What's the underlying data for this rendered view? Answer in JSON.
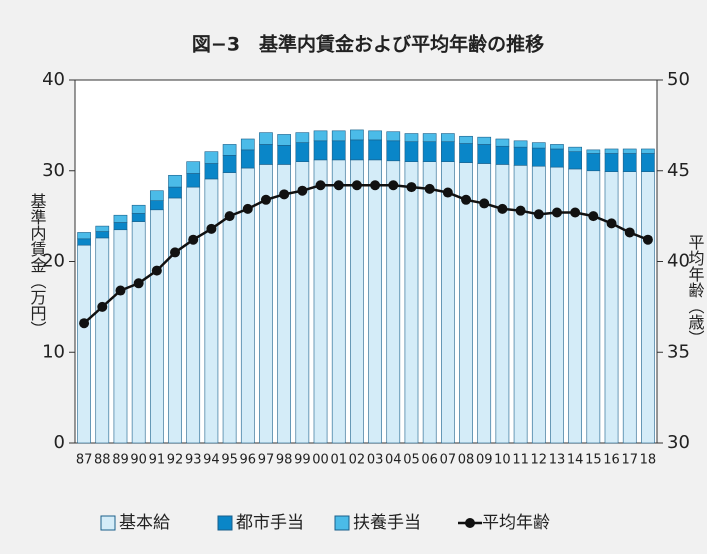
{
  "chart_data": {
    "type": "bar",
    "title": "図−3　基準内賃金および平均年齢の推移",
    "y_label": "基準内賃金（万円）",
    "y2_label": "平均年齢（歳）",
    "categories": [
      "87",
      "88",
      "89",
      "90",
      "91",
      "92",
      "93",
      "94",
      "95",
      "96",
      "97",
      "98",
      "99",
      "00",
      "01",
      "02",
      "03",
      "04",
      "05",
      "06",
      "07",
      "08",
      "09",
      "10",
      "11",
      "12",
      "13",
      "14",
      "15",
      "16",
      "17",
      "18"
    ],
    "ylim": [
      0,
      40
    ],
    "yticks": [
      0,
      10,
      20,
      30,
      40
    ],
    "y2lim": [
      30,
      50
    ],
    "y2ticks": [
      30,
      35,
      40,
      45,
      50
    ],
    "stacked": true,
    "series": [
      {
        "name": "基本給",
        "color": "#d4ecf8",
        "type": "bar",
        "values": [
          21.8,
          22.6,
          23.5,
          24.4,
          25.7,
          27.0,
          28.2,
          29.1,
          29.8,
          30.3,
          30.7,
          30.7,
          31.0,
          31.2,
          31.2,
          31.2,
          31.2,
          31.1,
          31.0,
          31.0,
          31.0,
          30.9,
          30.8,
          30.7,
          30.6,
          30.5,
          30.4,
          30.2,
          30.0,
          29.9,
          29.9,
          29.9
        ]
      },
      {
        "name": "都市手当",
        "color": "#0a86c8",
        "type": "bar",
        "values": [
          0.7,
          0.7,
          0.8,
          0.9,
          1.0,
          1.2,
          1.5,
          1.7,
          1.9,
          2.0,
          2.2,
          2.1,
          2.1,
          2.1,
          2.1,
          2.2,
          2.2,
          2.2,
          2.2,
          2.2,
          2.2,
          2.1,
          2.1,
          2.0,
          2.0,
          2.0,
          2.0,
          1.9,
          1.9,
          2.0,
          2.0,
          2.0
        ]
      },
      {
        "name": "扶養手当",
        "color": "#4bbbe8",
        "type": "bar",
        "values": [
          0.7,
          0.6,
          0.8,
          0.9,
          1.1,
          1.3,
          1.3,
          1.3,
          1.2,
          1.2,
          1.3,
          1.2,
          1.1,
          1.1,
          1.1,
          1.1,
          1.0,
          1.0,
          0.9,
          0.9,
          0.9,
          0.8,
          0.8,
          0.8,
          0.7,
          0.6,
          0.5,
          0.5,
          0.4,
          0.5,
          0.5,
          0.5
        ]
      },
      {
        "name": "平均年齢",
        "color": "#111111",
        "type": "line",
        "axis": "y2",
        "values": [
          36.6,
          37.5,
          38.4,
          38.8,
          39.5,
          40.5,
          41.2,
          41.8,
          42.5,
          42.9,
          43.4,
          43.7,
          43.9,
          44.2,
          44.2,
          44.2,
          44.2,
          44.2,
          44.1,
          44.0,
          43.8,
          43.4,
          43.2,
          42.9,
          42.8,
          42.6,
          42.7,
          42.7,
          42.5,
          42.1,
          41.6,
          41.2
        ]
      }
    ]
  }
}
